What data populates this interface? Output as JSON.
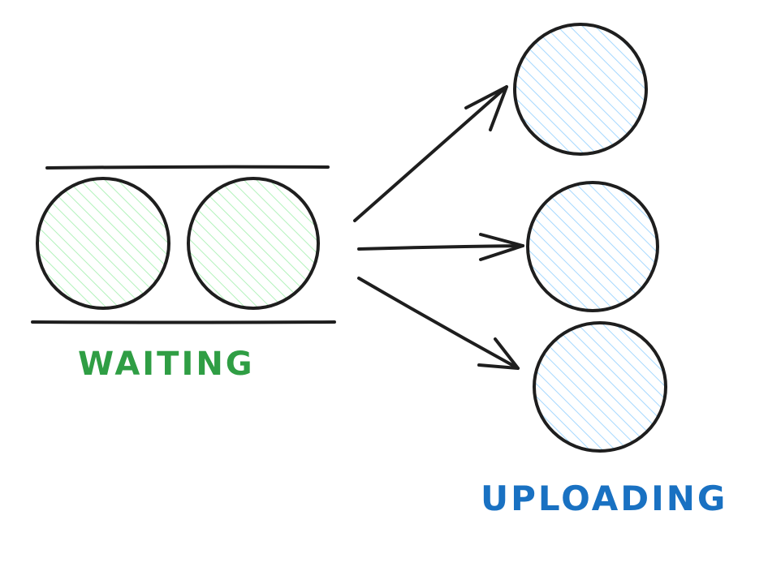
{
  "diagram": {
    "waiting": {
      "label": "WAITING",
      "color": "#2f9e44",
      "fill": "#b2f2bb",
      "items": 2
    },
    "uploading": {
      "label": "UPLOADING",
      "color": "#1971c2",
      "fill": "#a5d8ff",
      "items": 3
    },
    "stroke": "#1e1e1e"
  }
}
